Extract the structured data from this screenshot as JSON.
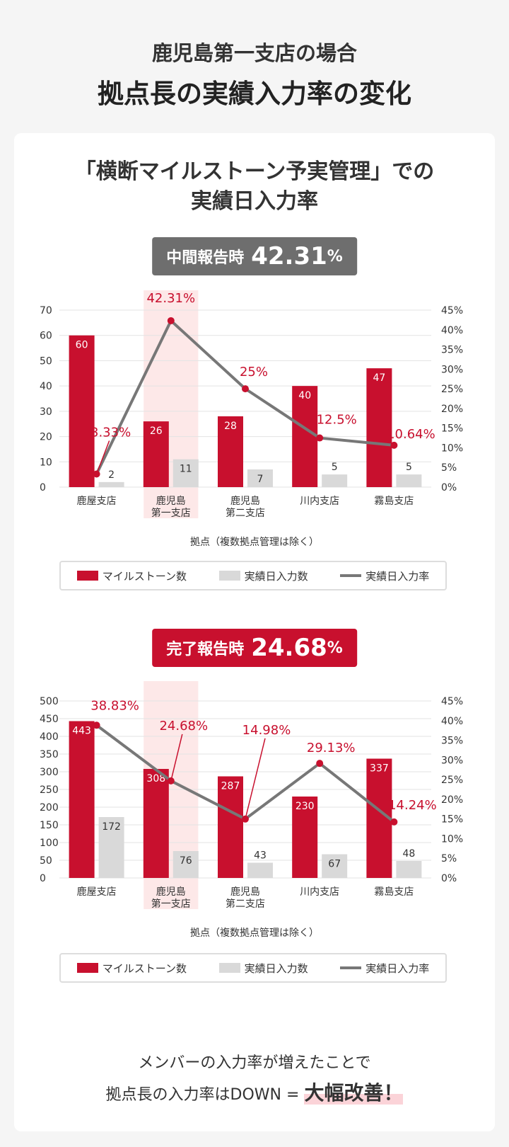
{
  "header": {
    "subtitle": "鹿児島第一支店の場合",
    "title": "拠点長の実績入力率の変化"
  },
  "card": {
    "title_line1": "「横断マイルストーン予実管理」での",
    "title_line2": "実績日入力率"
  },
  "colors": {
    "red": "#c8102e",
    "gray_bar": "#d9d9d9",
    "line": "#777777",
    "highlight": "#fde8e8",
    "badge_gray": "#6e6e6e"
  },
  "charts": [
    {
      "badge_label": "中間報告時",
      "badge_value": "42.31",
      "badge_unit": "%"
    },
    {
      "badge_label": "完了報告時",
      "badge_value": "24.68",
      "badge_unit": "%"
    }
  ],
  "chart_data": [
    {
      "type": "bar",
      "categories": [
        "鹿屋支店",
        "鹿児島\n第一支店",
        "鹿児島\n第二支店",
        "川内支店",
        "霧島支店"
      ],
      "highlight_index": 1,
      "series": [
        {
          "name": "マイルストーン数",
          "values": [
            60,
            26,
            28,
            40,
            47
          ]
        },
        {
          "name": "実績日入力数",
          "values": [
            2,
            11,
            7,
            5,
            5
          ]
        },
        {
          "name": "実績日入力率",
          "type": "line",
          "axis": "right",
          "values": [
            3.33,
            42.31,
            25,
            12.5,
            10.64
          ],
          "labels": [
            "3.33%",
            "42.31%",
            "25%",
            "12.5%",
            "10.64%"
          ]
        }
      ],
      "xlabel": "拠点（複数拠点管理は除く）",
      "ylim": [
        0,
        70
      ],
      "yticks": [
        0,
        10,
        20,
        30,
        40,
        50,
        60,
        70
      ],
      "y2lim": [
        0,
        45
      ],
      "y2ticks": [
        "0%",
        "5%",
        "10%",
        "15%",
        "20%",
        "25%",
        "30%",
        "35%",
        "40%",
        "45%"
      ],
      "grid": true,
      "legend": "bottom"
    },
    {
      "type": "bar",
      "categories": [
        "鹿屋支店",
        "鹿児島\n第一支店",
        "鹿児島\n第二支店",
        "川内支店",
        "霧島支店"
      ],
      "highlight_index": 1,
      "series": [
        {
          "name": "マイルストーン数",
          "values": [
            443,
            308,
            287,
            230,
            337
          ]
        },
        {
          "name": "実績日入力数",
          "values": [
            172,
            76,
            43,
            67,
            48
          ]
        },
        {
          "name": "実績日入力率",
          "type": "line",
          "axis": "right",
          "values": [
            38.83,
            24.68,
            14.98,
            29.13,
            14.24
          ],
          "labels": [
            "38.83%",
            "24.68%",
            "14.98%",
            "29.13%",
            "14.24%"
          ]
        }
      ],
      "xlabel": "拠点（複数拠点管理は除く）",
      "ylim": [
        0,
        500
      ],
      "yticks": [
        0,
        50,
        100,
        150,
        200,
        250,
        300,
        350,
        400,
        450,
        500
      ],
      "y2lim": [
        0,
        45
      ],
      "y2ticks": [
        "0%",
        "5%",
        "10%",
        "15%",
        "20%",
        "25%",
        "30%",
        "35%",
        "40%",
        "45%"
      ],
      "grid": true,
      "legend": "bottom"
    }
  ],
  "summary": {
    "line1": "メンバーの入力率が増えたことで",
    "line2": "拠点長の入力率はDOWN = ",
    "emphasis": "大幅改善！"
  }
}
